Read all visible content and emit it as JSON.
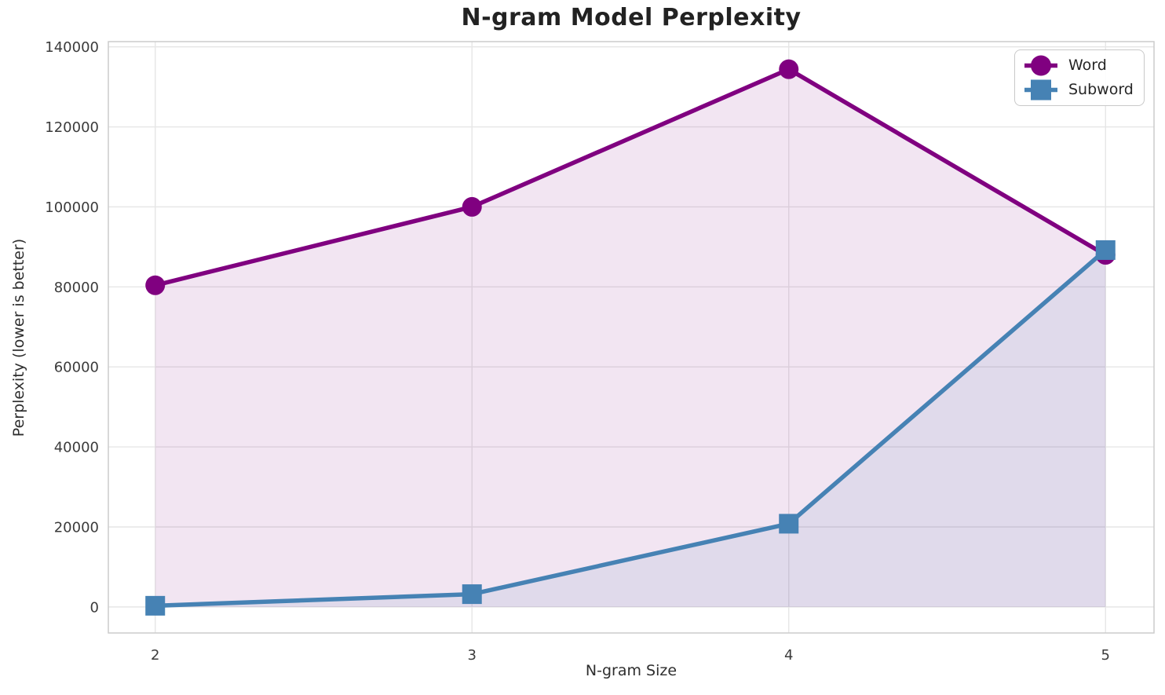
{
  "page": {
    "background": "#ffffff",
    "kind": "static-chart-screenshot"
  },
  "chart_data": {
    "type": "line",
    "title": "N-gram Model Perplexity",
    "xlabel": "N-gram Size",
    "ylabel": "Perplexity (lower is better)",
    "x": [
      2,
      3,
      4,
      5
    ],
    "series": [
      {
        "name": "Word",
        "marker": "circle",
        "color": "#800080",
        "fill_opacity": 0.1,
        "values": [
          80400,
          100000,
          134400,
          88000
        ]
      },
      {
        "name": "Subword",
        "marker": "square",
        "color": "#4682b4",
        "fill_opacity": 0.1,
        "values": [
          300,
          3200,
          20800,
          89200
        ]
      }
    ],
    "xticks": [
      2,
      3,
      4,
      5
    ],
    "yticks": [
      0,
      20000,
      40000,
      60000,
      80000,
      100000,
      120000,
      140000
    ],
    "xlim": [
      1.852,
      5.153
    ],
    "ylim": [
      -6500,
      141300
    ],
    "area_fill_baseline": 0,
    "grid": true,
    "grid_color": "#e6e6e6",
    "frame_color": "#cccccc",
    "legend_position": "upper right",
    "line_width": 5.5,
    "marker_radius": 12.5
  },
  "legend": {
    "items": [
      {
        "label": "Word"
      },
      {
        "label": "Subword"
      }
    ]
  }
}
